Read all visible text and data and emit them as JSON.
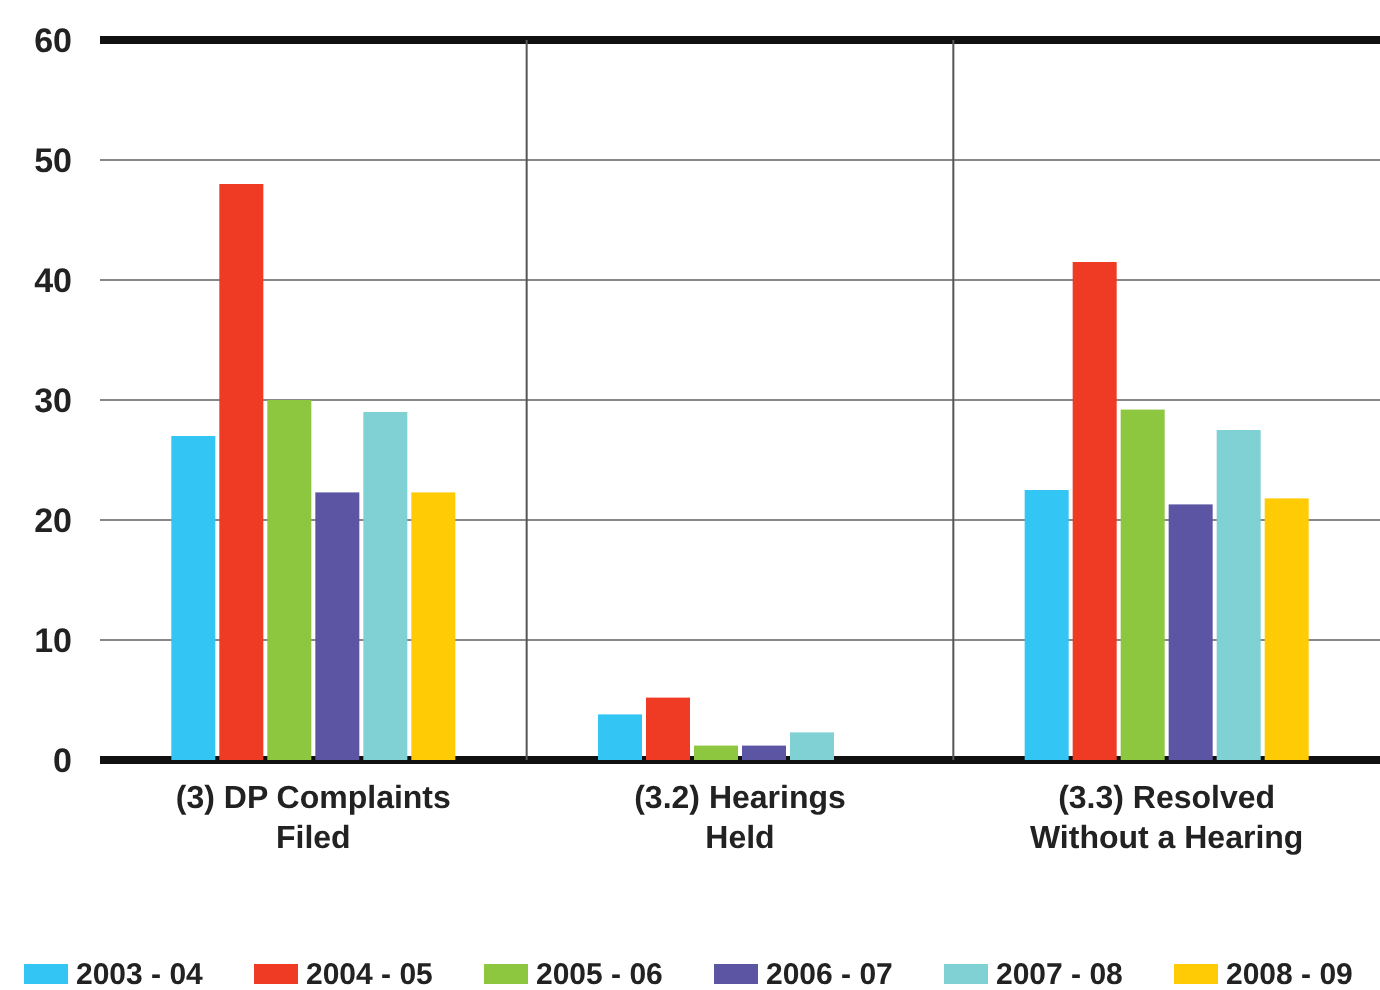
{
  "chart_data": {
    "type": "bar",
    "categories": [
      "(3) DP Complaints\nFiled",
      "(3.2) Hearings\nHeld",
      "(3.3) Resolved\nWithout a Hearing"
    ],
    "series": [
      {
        "name": "2003 - 04",
        "color": "#33c5f3",
        "values": [
          27,
          3.8,
          22.5
        ]
      },
      {
        "name": "2004 - 05",
        "color": "#ef3b24",
        "values": [
          48,
          5.2,
          41.5
        ]
      },
      {
        "name": "2005 - 06",
        "color": "#8dc63f",
        "values": [
          30,
          1.2,
          29.2
        ]
      },
      {
        "name": "2006 - 07",
        "color": "#5b55a3",
        "values": [
          22.3,
          1.2,
          21.3
        ]
      },
      {
        "name": "2007 - 08",
        "color": "#7fd1d3",
        "values": [
          29,
          2.3,
          27.5
        ]
      },
      {
        "name": "2008 - 09",
        "color": "#ffcb05",
        "values": [
          22.3,
          0,
          21.8
        ]
      }
    ],
    "ylim": [
      0,
      60
    ],
    "yticks": [
      0,
      10,
      20,
      30,
      40,
      50,
      60
    ],
    "grid": "y",
    "legend": "bottom"
  }
}
